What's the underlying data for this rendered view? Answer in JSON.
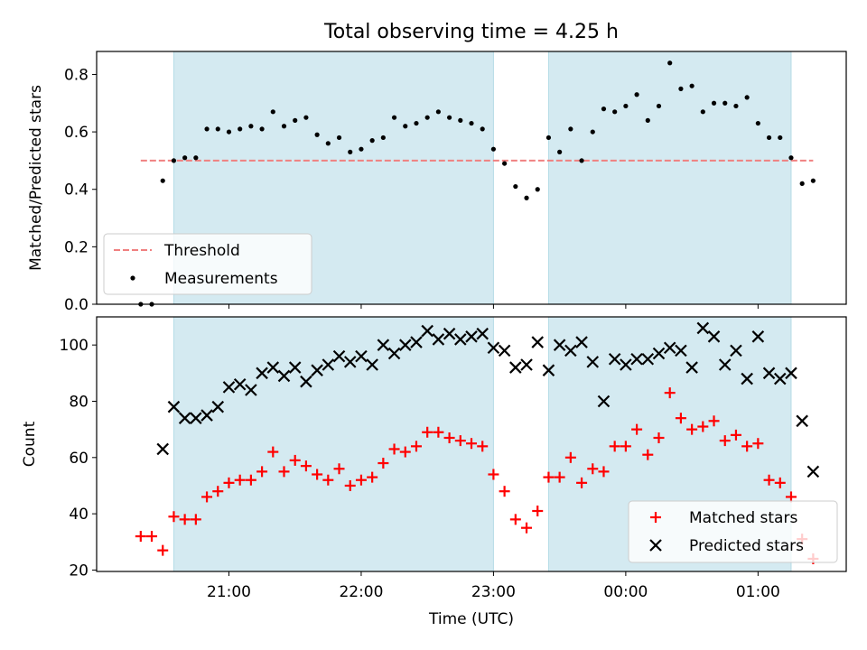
{
  "chart_data": [
    {
      "type": "scatter",
      "title": "Total observing time = 4.25 h",
      "xlabel": "",
      "ylabel": "Matched/Predicted stars",
      "ylim": [
        0,
        0.88
      ],
      "yticks": [
        "0.0",
        "0.2",
        "0.4",
        "0.6",
        "0.8"
      ],
      "threshold": {
        "name": "Threshold",
        "value": 0.5,
        "x_start": "20:20",
        "x_end": "01:25",
        "color": "#f08080"
      },
      "shaded_intervals": [
        [
          "20:35",
          "23:00"
        ],
        [
          "23:25",
          "01:15"
        ]
      ],
      "shade_color": "#d4eaf1",
      "legend": {
        "placement": "lower-left",
        "entries": [
          "Threshold",
          "Measurements"
        ]
      },
      "series": [
        {
          "name": "Measurements",
          "marker": "dot",
          "color": "#000000",
          "x": [
            "20:20",
            "20:25",
            "20:30",
            "20:35",
            "20:40",
            "20:45",
            "20:50",
            "20:55",
            "21:00",
            "21:05",
            "21:10",
            "21:15",
            "21:20",
            "21:25",
            "21:30",
            "21:35",
            "21:40",
            "21:45",
            "21:50",
            "21:55",
            "22:00",
            "22:05",
            "22:10",
            "22:15",
            "22:20",
            "22:25",
            "22:30",
            "22:35",
            "22:40",
            "22:45",
            "22:50",
            "22:55",
            "23:00",
            "23:05",
            "23:10",
            "23:15",
            "23:20",
            "23:25",
            "23:30",
            "23:35",
            "23:40",
            "23:45",
            "23:50",
            "23:55",
            "00:00",
            "00:05",
            "00:10",
            "00:15",
            "00:20",
            "00:25",
            "00:30",
            "00:35",
            "00:40",
            "00:45",
            "00:50",
            "00:55",
            "01:00",
            "01:05",
            "01:10",
            "01:15",
            "01:20",
            "01:25"
          ],
          "y": [
            0.0,
            0.0,
            0.43,
            0.5,
            0.51,
            0.51,
            0.61,
            0.61,
            0.6,
            0.61,
            0.62,
            0.61,
            0.67,
            0.62,
            0.64,
            0.65,
            0.59,
            0.56,
            0.58,
            0.53,
            0.54,
            0.57,
            0.58,
            0.65,
            0.62,
            0.63,
            0.65,
            0.67,
            0.65,
            0.64,
            0.63,
            0.61,
            0.54,
            0.49,
            0.41,
            0.37,
            0.4,
            0.58,
            0.53,
            0.61,
            0.5,
            0.6,
            0.68,
            0.67,
            0.69,
            0.73,
            0.64,
            0.69,
            0.84,
            0.75,
            0.76,
            0.67,
            0.7,
            0.7,
            0.69,
            0.72,
            0.63,
            0.58,
            0.58,
            0.51,
            0.42,
            0.43
          ]
        }
      ]
    },
    {
      "type": "scatter",
      "title": "",
      "xlabel": "Time (UTC)",
      "ylabel": "Count",
      "ylim": [
        19.5,
        110
      ],
      "yticks": [
        "20",
        "40",
        "60",
        "80",
        "100"
      ],
      "xticks": [
        "21:00",
        "22:00",
        "23:00",
        "00:00",
        "01:00"
      ],
      "shaded_intervals": [
        [
          "20:35",
          "23:00"
        ],
        [
          "23:25",
          "01:15"
        ]
      ],
      "shade_color": "#d4eaf1",
      "legend": {
        "placement": "lower-right",
        "entries": [
          "Matched stars",
          "Predicted stars"
        ]
      },
      "series": [
        {
          "name": "Matched stars",
          "marker": "plus",
          "color": "#ff0000",
          "x": [
            "20:20",
            "20:25",
            "20:30",
            "20:35",
            "20:40",
            "20:45",
            "20:50",
            "20:55",
            "21:00",
            "21:05",
            "21:10",
            "21:15",
            "21:20",
            "21:25",
            "21:30",
            "21:35",
            "21:40",
            "21:45",
            "21:50",
            "21:55",
            "22:00",
            "22:05",
            "22:10",
            "22:15",
            "22:20",
            "22:25",
            "22:30",
            "22:35",
            "22:40",
            "22:45",
            "22:50",
            "22:55",
            "23:00",
            "23:05",
            "23:10",
            "23:15",
            "23:20",
            "23:25",
            "23:30",
            "23:35",
            "23:40",
            "23:45",
            "23:50",
            "23:55",
            "00:00",
            "00:05",
            "00:10",
            "00:15",
            "00:20",
            "00:25",
            "00:30",
            "00:35",
            "00:40",
            "00:45",
            "00:50",
            "00:55",
            "01:00",
            "01:05",
            "01:10",
            "01:15",
            "01:20",
            "01:25"
          ],
          "y": [
            32,
            32,
            27,
            39,
            38,
            38,
            46,
            48,
            51,
            52,
            52,
            55,
            62,
            55,
            59,
            57,
            54,
            52,
            56,
            50,
            52,
            53,
            58,
            63,
            62,
            64,
            69,
            69,
            67,
            66,
            65,
            64,
            54,
            48,
            38,
            35,
            41,
            53,
            53,
            60,
            51,
            56,
            55,
            64,
            64,
            70,
            61,
            67,
            83,
            74,
            70,
            71,
            73,
            66,
            68,
            64,
            65,
            52,
            51,
            46,
            31,
            24
          ]
        },
        {
          "name": "Predicted stars",
          "marker": "x",
          "color": "#000000",
          "x": [
            "20:30",
            "20:35",
            "20:40",
            "20:45",
            "20:50",
            "20:55",
            "21:00",
            "21:05",
            "21:10",
            "21:15",
            "21:20",
            "21:25",
            "21:30",
            "21:35",
            "21:40",
            "21:45",
            "21:50",
            "21:55",
            "22:00",
            "22:05",
            "22:10",
            "22:15",
            "22:20",
            "22:25",
            "22:30",
            "22:35",
            "22:40",
            "22:45",
            "22:50",
            "22:55",
            "23:00",
            "23:05",
            "23:10",
            "23:15",
            "23:20",
            "23:25",
            "23:30",
            "23:35",
            "23:40",
            "23:45",
            "23:50",
            "23:55",
            "00:00",
            "00:05",
            "00:10",
            "00:15",
            "00:20",
            "00:25",
            "00:30",
            "00:35",
            "00:40",
            "00:45",
            "00:50",
            "00:55",
            "01:00",
            "01:05",
            "01:10",
            "01:15",
            "01:20",
            "01:25"
          ],
          "y": [
            63,
            78,
            74,
            74,
            75,
            78,
            85,
            86,
            84,
            90,
            92,
            89,
            92,
            87,
            91,
            93,
            96,
            94,
            96,
            93,
            100,
            97,
            100,
            101,
            105,
            102,
            104,
            102,
            103,
            104,
            99,
            98,
            92,
            93,
            101,
            91,
            100,
            98,
            101,
            94,
            80,
            95,
            93,
            95,
            95,
            97,
            99,
            98,
            92,
            106,
            103,
            93,
            98,
            88,
            103,
            90,
            88,
            90,
            73,
            55
          ]
        }
      ]
    }
  ]
}
